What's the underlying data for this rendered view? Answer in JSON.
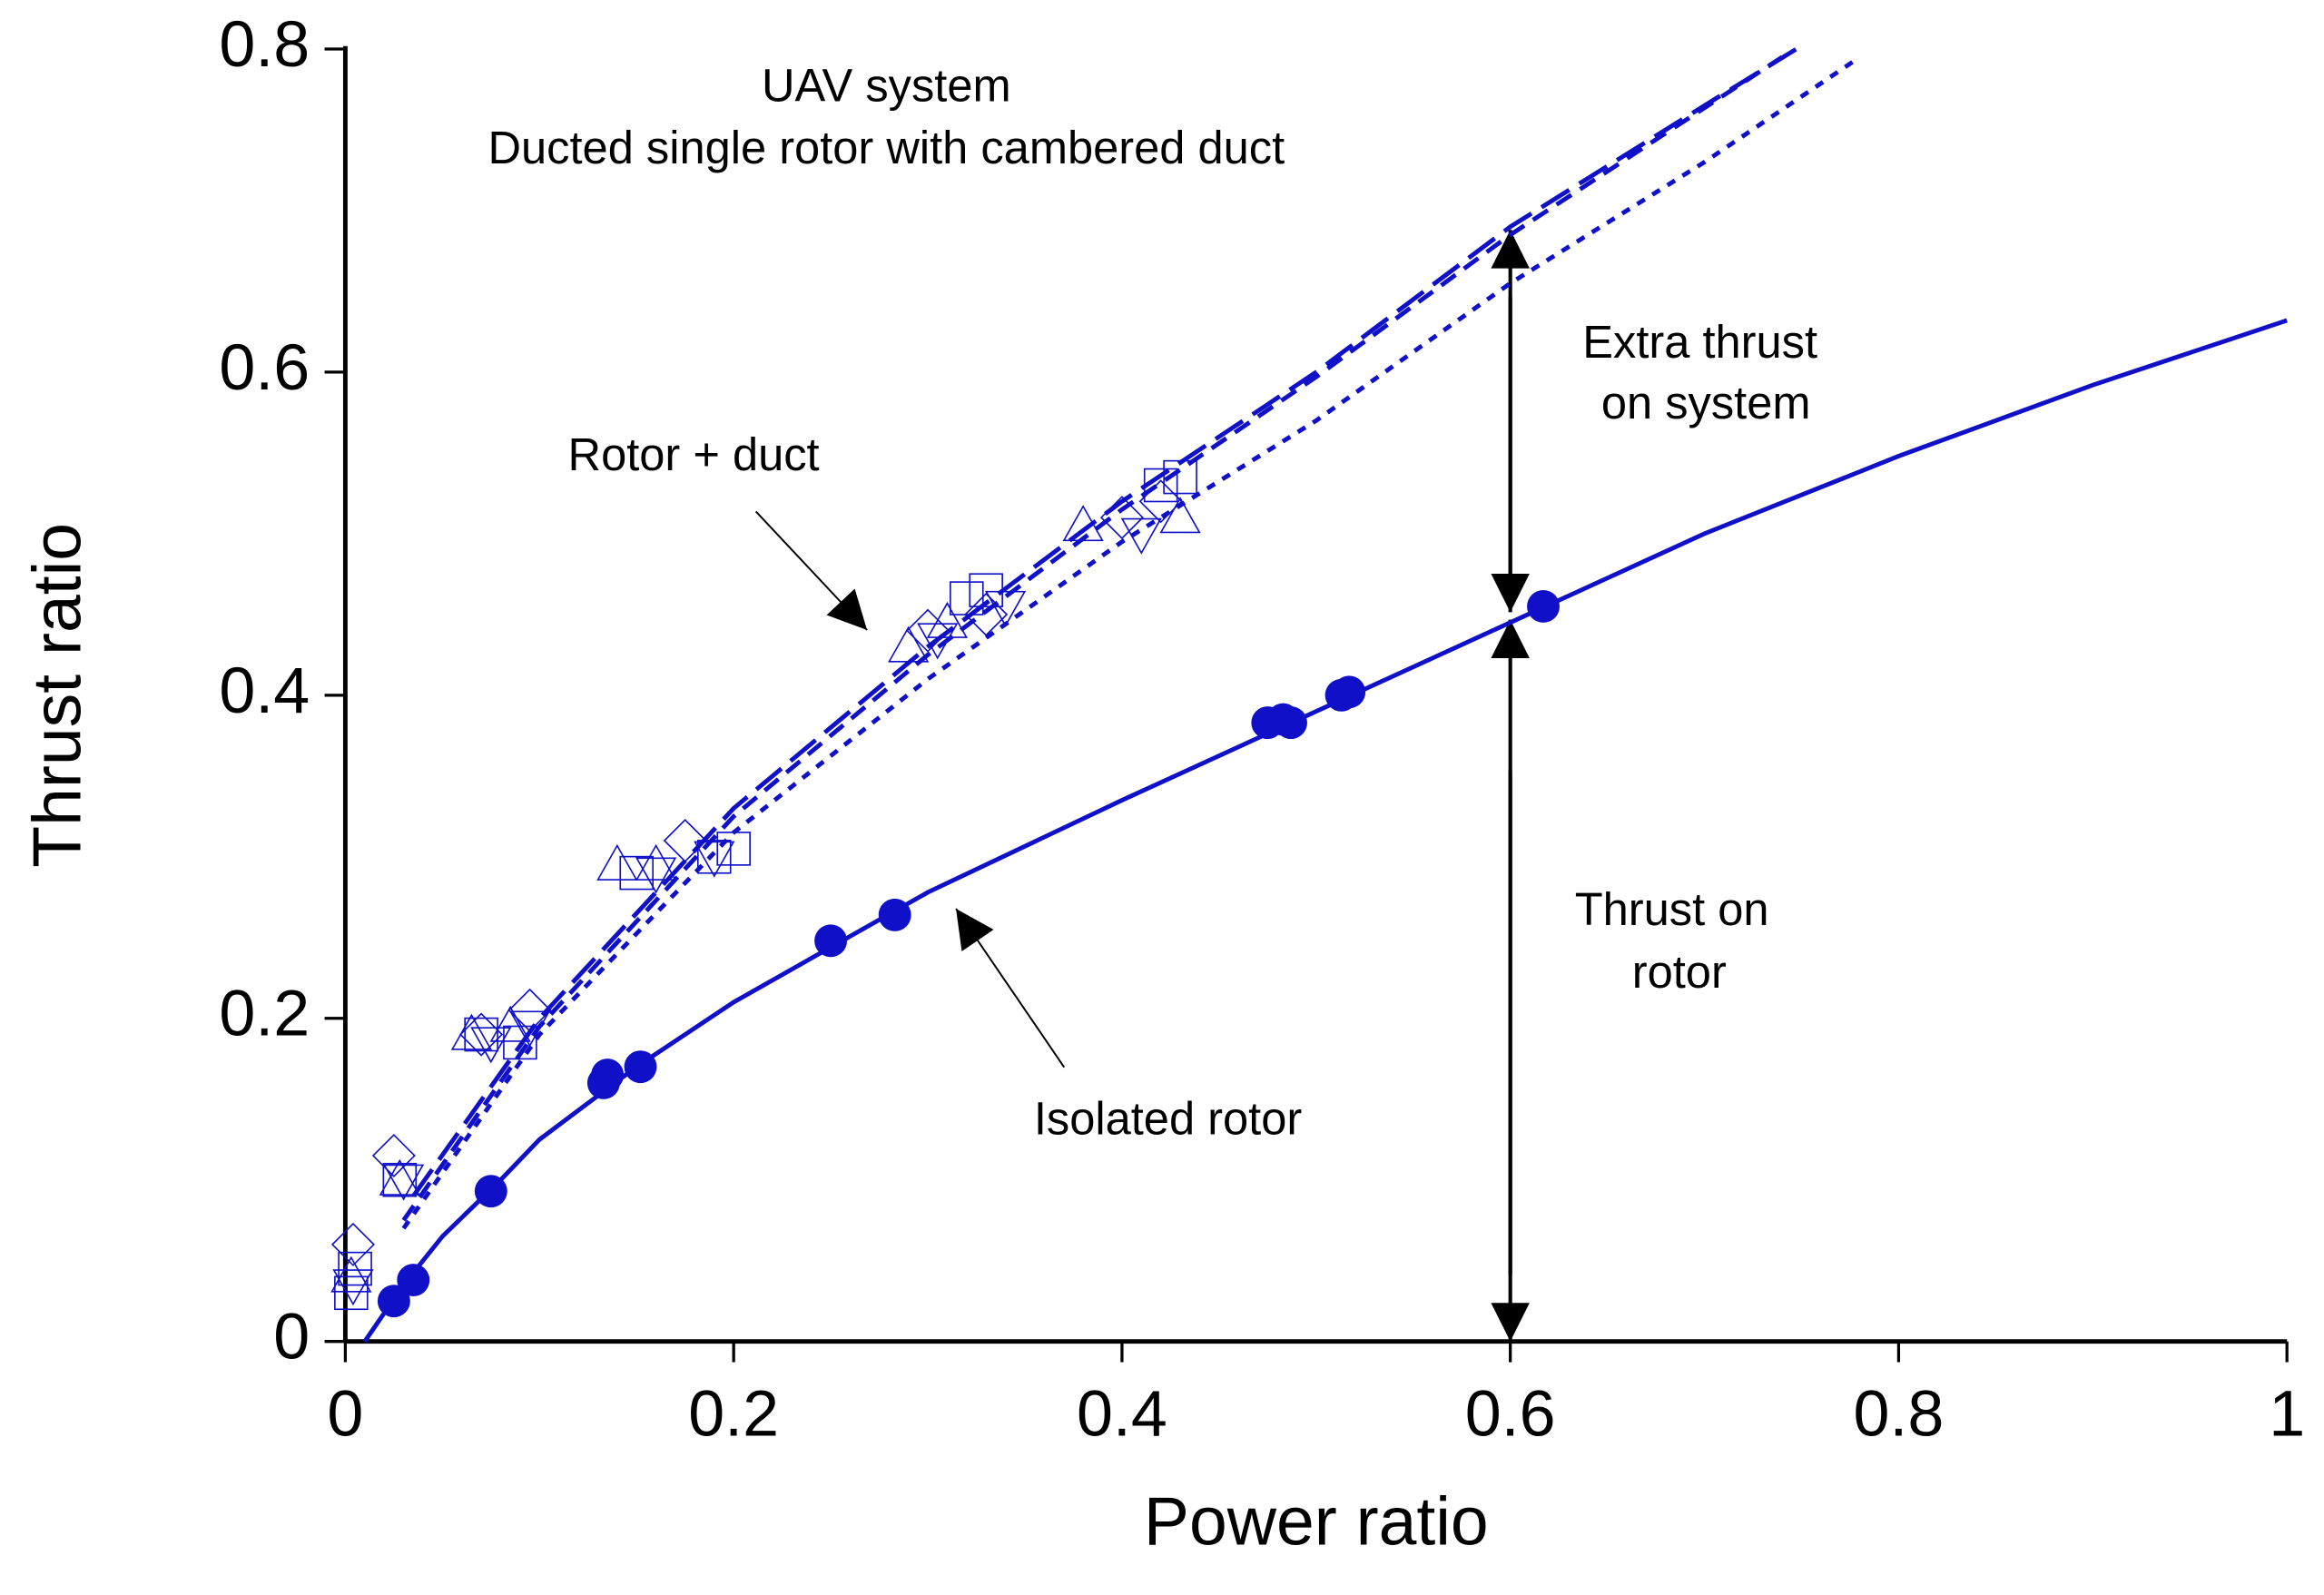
{
  "chart_data": {
    "type": "line",
    "xlabel": "Power ratio",
    "ylabel": "Thrust ratio",
    "xlim": [
      0,
      1
    ],
    "ylim": [
      0,
      0.8
    ],
    "xticks": [
      0,
      0.2,
      0.4,
      0.6,
      0.8,
      1
    ],
    "yticks": [
      0,
      0.2,
      0.4,
      0.6,
      0.8
    ],
    "annotations": [
      "UAV system",
      "Ducted single rotor with cambered duct",
      "Rotor + duct",
      "Extra thrust",
      "on system",
      "Thrust on",
      "rotor",
      "Isolated rotor"
    ],
    "color": "#1010c8",
    "series": [
      {
        "style": "solid",
        "x": [
          0.01,
          0.03,
          0.05,
          0.08,
          0.1,
          0.15,
          0.2,
          0.3,
          0.4,
          0.5,
          0.6,
          0.7,
          0.8,
          0.9,
          1
        ],
        "values": [
          0,
          0.035,
          0.065,
          0.1,
          0.125,
          0.17,
          0.21,
          0.278,
          0.335,
          0.39,
          0.445,
          0.5,
          0.548,
          0.592,
          0.632
        ]
      },
      {
        "style": "long-dash",
        "x": [
          0.035,
          0.1,
          0.2,
          0.3,
          0.4,
          0.5,
          0.6,
          0.7,
          0.75
        ],
        "values": [
          0.09,
          0.2,
          0.33,
          0.43,
          0.52,
          0.6,
          0.69,
          0.765,
          0.802
        ]
      },
      {
        "style": "dash",
        "x": [
          0.03,
          0.1,
          0.2,
          0.3,
          0.4,
          0.5,
          0.6,
          0.74
        ],
        "values": [
          0.075,
          0.195,
          0.325,
          0.425,
          0.515,
          0.597,
          0.685,
          0.795
        ]
      },
      {
        "style": "dot",
        "x": [
          0.03,
          0.1,
          0.2,
          0.3,
          0.4,
          0.5,
          0.6,
          0.7,
          0.78
        ],
        "values": [
          0.07,
          0.19,
          0.315,
          0.41,
          0.495,
          0.57,
          0.655,
          0.73,
          0.795
        ]
      },
      {
        "marker": "circle",
        "x": [
          0.025,
          0.035,
          0.075,
          0.133,
          0.135,
          0.152,
          0.25,
          0.283,
          0.475,
          0.483,
          0.487,
          0.513,
          0.517,
          0.617
        ],
        "values": [
          0.025,
          0.038,
          0.093,
          0.16,
          0.165,
          0.17,
          0.248,
          0.264,
          0.383,
          0.385,
          0.383,
          0.4,
          0.402,
          0.455
        ]
      },
      {
        "marker": "square",
        "x": [
          0.003,
          0.005,
          0.028,
          0.07,
          0.09,
          0.15,
          0.19,
          0.2,
          0.32,
          0.33,
          0.42,
          0.43
        ],
        "values": [
          0.03,
          0.045,
          0.1,
          0.19,
          0.185,
          0.29,
          0.3,
          0.305,
          0.46,
          0.465,
          0.53,
          0.535
        ]
      },
      {
        "marker": "triangle",
        "x": [
          0.003,
          0.028,
          0.065,
          0.085,
          0.14,
          0.16,
          0.29,
          0.31,
          0.38,
          0.43
        ],
        "values": [
          0.04,
          0.1,
          0.19,
          0.195,
          0.295,
          0.295,
          0.43,
          0.445,
          0.505,
          0.51
        ]
      },
      {
        "marker": "diamond",
        "x": [
          0.004,
          0.025,
          0.07,
          0.095,
          0.175,
          0.3,
          0.33,
          0.4,
          0.42
        ],
        "values": [
          0.06,
          0.115,
          0.19,
          0.205,
          0.31,
          0.44,
          0.45,
          0.51,
          0.52
        ]
      },
      {
        "marker": "inverted-triangle",
        "x": [
          0.004,
          0.03,
          0.075,
          0.095,
          0.16,
          0.19,
          0.305,
          0.34,
          0.41
        ],
        "values": [
          0.035,
          0.1,
          0.185,
          0.195,
          0.29,
          0.3,
          0.435,
          0.455,
          0.5
        ]
      }
    ]
  }
}
